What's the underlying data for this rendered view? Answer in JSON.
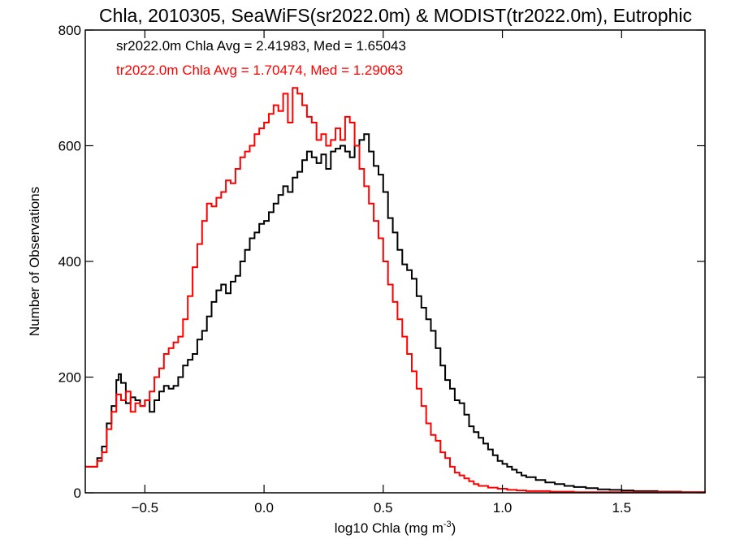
{
  "chart_data": {
    "type": "histogram-step",
    "title": "Chla, 2010305, SeaWiFS(sr2022.0m) & MODIST(tr2022.0m), Eutrophic",
    "xlabel_main": "log10 Chla (mg m",
    "xlabel_sup": "-3",
    "xlabel_end": ")",
    "ylabel": "Number of Observations",
    "xlim": [
      -0.75,
      1.85
    ],
    "ylim": [
      0,
      800
    ],
    "x_ticks": [
      -0.5,
      0.0,
      0.5,
      1.0,
      1.5
    ],
    "x_tick_labels": [
      "−0.5",
      "0.0",
      "0.5",
      "1.0",
      "1.5"
    ],
    "y_ticks": [
      0,
      200,
      400,
      600,
      800
    ],
    "y_tick_labels": [
      "0",
      "200",
      "400",
      "600",
      "800"
    ],
    "grid": false,
    "annotations": [
      {
        "text": "sr2022.0m Chla Avg = 2.41983, Med = 1.65043",
        "color": "#000000"
      },
      {
        "text": "tr2022.0m Chla Avg = 1.70474, Med = 1.29063",
        "color": "#ff0000"
      }
    ],
    "series": [
      {
        "color": "#000000",
        "points": [
          [
            -0.75,
            45
          ],
          [
            -0.7,
            60
          ],
          [
            -0.68,
            80
          ],
          [
            -0.66,
            120
          ],
          [
            -0.64,
            150
          ],
          [
            -0.62,
            195
          ],
          [
            -0.61,
            205
          ],
          [
            -0.6,
            190
          ],
          [
            -0.58,
            155
          ],
          [
            -0.56,
            165
          ],
          [
            -0.54,
            160
          ],
          [
            -0.52,
            150
          ],
          [
            -0.5,
            160
          ],
          [
            -0.48,
            140
          ],
          [
            -0.46,
            160
          ],
          [
            -0.44,
            175
          ],
          [
            -0.42,
            185
          ],
          [
            -0.4,
            180
          ],
          [
            -0.38,
            185
          ],
          [
            -0.36,
            200
          ],
          [
            -0.34,
            220
          ],
          [
            -0.32,
            230
          ],
          [
            -0.3,
            240
          ],
          [
            -0.28,
            265
          ],
          [
            -0.26,
            280
          ],
          [
            -0.24,
            305
          ],
          [
            -0.22,
            330
          ],
          [
            -0.2,
            350
          ],
          [
            -0.18,
            360
          ],
          [
            -0.16,
            345
          ],
          [
            -0.14,
            365
          ],
          [
            -0.12,
            375
          ],
          [
            -0.1,
            400
          ],
          [
            -0.08,
            420
          ],
          [
            -0.06,
            440
          ],
          [
            -0.04,
            450
          ],
          [
            -0.02,
            465
          ],
          [
            0.0,
            470
          ],
          [
            0.02,
            485
          ],
          [
            0.04,
            500
          ],
          [
            0.06,
            515
          ],
          [
            0.08,
            530
          ],
          [
            0.1,
            520
          ],
          [
            0.12,
            545
          ],
          [
            0.14,
            555
          ],
          [
            0.16,
            575
          ],
          [
            0.18,
            590
          ],
          [
            0.2,
            580
          ],
          [
            0.22,
            570
          ],
          [
            0.24,
            585
          ],
          [
            0.26,
            560
          ],
          [
            0.28,
            590
          ],
          [
            0.3,
            595
          ],
          [
            0.32,
            600
          ],
          [
            0.34,
            590
          ],
          [
            0.36,
            580
          ],
          [
            0.38,
            600
          ],
          [
            0.4,
            610
          ],
          [
            0.42,
            620
          ],
          [
            0.44,
            590
          ],
          [
            0.46,
            565
          ],
          [
            0.48,
            550
          ],
          [
            0.5,
            520
          ],
          [
            0.52,
            475
          ],
          [
            0.54,
            450
          ],
          [
            0.56,
            420
          ],
          [
            0.58,
            395
          ],
          [
            0.6,
            385
          ],
          [
            0.62,
            370
          ],
          [
            0.64,
            340
          ],
          [
            0.66,
            320
          ],
          [
            0.68,
            300
          ],
          [
            0.7,
            280
          ],
          [
            0.72,
            250
          ],
          [
            0.74,
            220
          ],
          [
            0.76,
            195
          ],
          [
            0.78,
            180
          ],
          [
            0.8,
            160
          ],
          [
            0.82,
            155
          ],
          [
            0.84,
            135
          ],
          [
            0.86,
            115
          ],
          [
            0.88,
            105
          ],
          [
            0.9,
            95
          ],
          [
            0.92,
            85
          ],
          [
            0.94,
            75
          ],
          [
            0.96,
            65
          ],
          [
            0.98,
            55
          ],
          [
            1.0,
            50
          ],
          [
            1.02,
            45
          ],
          [
            1.04,
            40
          ],
          [
            1.06,
            35
          ],
          [
            1.08,
            30
          ],
          [
            1.1,
            27
          ],
          [
            1.14,
            22
          ],
          [
            1.18,
            18
          ],
          [
            1.22,
            15
          ],
          [
            1.26,
            12
          ],
          [
            1.3,
            10
          ],
          [
            1.35,
            8
          ],
          [
            1.4,
            6
          ],
          [
            1.45,
            5
          ],
          [
            1.5,
            4
          ],
          [
            1.55,
            3
          ],
          [
            1.6,
            3
          ],
          [
            1.65,
            2
          ],
          [
            1.7,
            2
          ],
          [
            1.75,
            1
          ],
          [
            1.8,
            1
          ],
          [
            1.85,
            0
          ]
        ]
      },
      {
        "color": "#ff0000",
        "points": [
          [
            -0.75,
            45
          ],
          [
            -0.7,
            55
          ],
          [
            -0.68,
            70
          ],
          [
            -0.66,
            110
          ],
          [
            -0.64,
            140
          ],
          [
            -0.62,
            170
          ],
          [
            -0.6,
            160
          ],
          [
            -0.58,
            175
          ],
          [
            -0.56,
            140
          ],
          [
            -0.54,
            155
          ],
          [
            -0.52,
            150
          ],
          [
            -0.5,
            160
          ],
          [
            -0.48,
            175
          ],
          [
            -0.46,
            200
          ],
          [
            -0.44,
            215
          ],
          [
            -0.42,
            240
          ],
          [
            -0.4,
            250
          ],
          [
            -0.38,
            260
          ],
          [
            -0.36,
            270
          ],
          [
            -0.34,
            300
          ],
          [
            -0.32,
            340
          ],
          [
            -0.3,
            390
          ],
          [
            -0.28,
            430
          ],
          [
            -0.26,
            470
          ],
          [
            -0.24,
            500
          ],
          [
            -0.22,
            495
          ],
          [
            -0.2,
            510
          ],
          [
            -0.18,
            520
          ],
          [
            -0.16,
            540
          ],
          [
            -0.14,
            535
          ],
          [
            -0.12,
            560
          ],
          [
            -0.1,
            580
          ],
          [
            -0.08,
            590
          ],
          [
            -0.06,
            600
          ],
          [
            -0.04,
            620
          ],
          [
            -0.02,
            630
          ],
          [
            0.0,
            640
          ],
          [
            0.02,
            655
          ],
          [
            0.04,
            670
          ],
          [
            0.06,
            660
          ],
          [
            0.08,
            690
          ],
          [
            0.1,
            640
          ],
          [
            0.12,
            700
          ],
          [
            0.14,
            690
          ],
          [
            0.16,
            670
          ],
          [
            0.18,
            650
          ],
          [
            0.2,
            640
          ],
          [
            0.22,
            610
          ],
          [
            0.24,
            620
          ],
          [
            0.26,
            600
          ],
          [
            0.28,
            610
          ],
          [
            0.3,
            630
          ],
          [
            0.32,
            610
          ],
          [
            0.34,
            650
          ],
          [
            0.36,
            640
          ],
          [
            0.38,
            600
          ],
          [
            0.4,
            560
          ],
          [
            0.42,
            530
          ],
          [
            0.44,
            500
          ],
          [
            0.46,
            470
          ],
          [
            0.48,
            440
          ],
          [
            0.5,
            400
          ],
          [
            0.52,
            360
          ],
          [
            0.54,
            330
          ],
          [
            0.56,
            300
          ],
          [
            0.58,
            270
          ],
          [
            0.6,
            240
          ],
          [
            0.62,
            210
          ],
          [
            0.64,
            180
          ],
          [
            0.66,
            150
          ],
          [
            0.68,
            120
          ],
          [
            0.7,
            100
          ],
          [
            0.72,
            90
          ],
          [
            0.74,
            70
          ],
          [
            0.76,
            60
          ],
          [
            0.78,
            45
          ],
          [
            0.8,
            35
          ],
          [
            0.82,
            30
          ],
          [
            0.84,
            25
          ],
          [
            0.86,
            20
          ],
          [
            0.88,
            15
          ],
          [
            0.9,
            12
          ],
          [
            0.94,
            9
          ],
          [
            0.98,
            7
          ],
          [
            1.02,
            5
          ],
          [
            1.06,
            4
          ],
          [
            1.1,
            3
          ],
          [
            1.2,
            2
          ],
          [
            1.3,
            1
          ],
          [
            1.5,
            1
          ],
          [
            1.85,
            0
          ]
        ]
      }
    ]
  }
}
